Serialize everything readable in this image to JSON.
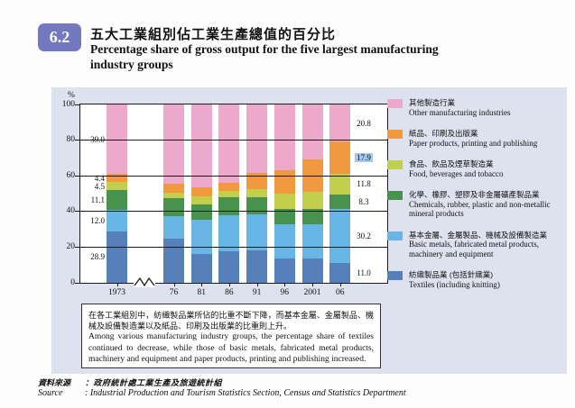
{
  "header": {
    "badge": "6.2",
    "title_zh": "五大工業組別佔工業生產總值的百分比",
    "title_en_line1": "Percentage share of gross output for the five largest manufacturing",
    "title_en_line2": "industry groups"
  },
  "chart_data": {
    "type": "bar",
    "stacked": true,
    "percent_unit": "%",
    "ylim": [
      0,
      100
    ],
    "yticks": [
      "0",
      "20",
      "40",
      "60",
      "80",
      "100"
    ],
    "grid": "horizontal",
    "legend_position": "right",
    "categories": [
      "1973",
      "76",
      "81",
      "86",
      "91",
      "96",
      "2001",
      "06"
    ],
    "axis_break_after_first_category": true,
    "series": [
      {
        "name_zh": "紡織製品業 (包括針織業)",
        "name_en": "Textiles (including knitting)",
        "color": "#5580ba",
        "values": [
          28.9,
          24.8,
          16.0,
          17.8,
          18.3,
          13.6,
          13.6,
          11.0
        ]
      },
      {
        "name_zh": "基本金屬、金屬製品、機械及設備製造業",
        "name_en": "Basic metals, fabricated metal products, machinery and equipment",
        "color": "#67b6e5",
        "values": [
          12.0,
          12.4,
          19.5,
          20.0,
          20.3,
          19.1,
          19.1,
          30.2
        ]
      },
      {
        "name_zh": "化學、橡膠、塑膠及非金屬礦產製品業",
        "name_en": "Chemicals, rubber, plastic and non-metallic mineral products",
        "color": "#46924e",
        "values": [
          11.1,
          10.1,
          8.6,
          10.2,
          9.4,
          8.8,
          8.5,
          8.3
        ]
      },
      {
        "name_zh": "食品、飲品及煙草製造業",
        "name_en": "Food, beverages and tobacco",
        "color": "#c2cf4d",
        "values": [
          4.5,
          3.4,
          4.2,
          3.4,
          4.5,
          8.5,
          9.6,
          11.8
        ]
      },
      {
        "name_zh": "紙品、印刷及出版業",
        "name_en": "Paper products, printing and publishing",
        "color": "#f0993e",
        "values": [
          4.4,
          5.1,
          5.1,
          4.5,
          9.0,
          13.2,
          18.4,
          17.9
        ]
      },
      {
        "name_zh": "其他製造行業",
        "name_en": "Other manufacturing industries",
        "color": "#eda9cc",
        "values": [
          39.0,
          44.2,
          46.6,
          44.1,
          38.5,
          36.8,
          30.8,
          20.8
        ]
      }
    ],
    "value_labels_first_bar": [
      "28.9",
      "12.0",
      "11.1",
      "4.5",
      "4.4",
      "39.0"
    ],
    "value_labels_last_bar": [
      {
        "text": "11.0",
        "highlight": false
      },
      {
        "text": "30.2",
        "highlight": false
      },
      {
        "text": "8.3",
        "highlight": false
      },
      {
        "text": "11.8",
        "highlight": false
      },
      {
        "text": "17.9",
        "highlight": true
      },
      {
        "text": "20.8",
        "highlight": false
      }
    ],
    "highlight_color": "#a6c9e9"
  },
  "note": {
    "zh": "在各工業組別中，紡織製品業所佔的比重不斷下降，而基本金屬、金屬製品、機械及設備製造業以及紙品、印刷及出版業的比重則上升。",
    "en": "Among various manufacturing industry groups, the percentage share of textiles continued to decrease, while those of basic metals, fabricated metal products, machinery and equipment and paper products, printing and publishing increased."
  },
  "source": {
    "label_zh": "資料來源",
    "text_zh": "：政府統計處工業生產及旅遊統計組",
    "label_en": "Source",
    "text_en": ": Industrial Production and Tourism Statistics Section, Census and Statistics Department"
  }
}
